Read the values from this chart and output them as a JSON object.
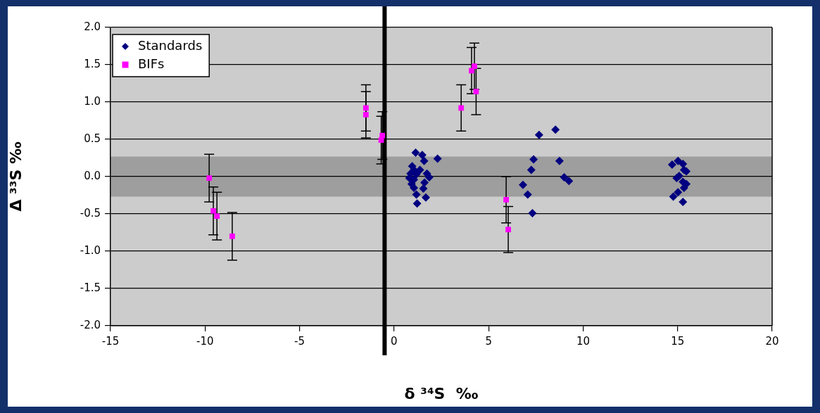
{
  "chart_data": {
    "type": "scatter",
    "xlabel": "δ ³⁴S  ‰",
    "ylabel": "Δ ³³S ‰",
    "xlim": [
      -15,
      20
    ],
    "xticks": [
      -15,
      -10,
      -5,
      0,
      5,
      10,
      15,
      20
    ],
    "ylim": [
      -2,
      2
    ],
    "yticks": [
      {
        "value": -2,
        "label": "-2.0"
      },
      {
        "value": -1.5,
        "label": "-1.5"
      },
      {
        "value": -1,
        "label": "-1.0"
      },
      {
        "value": -0.5,
        "label": "-0.5"
      },
      {
        "value": 0,
        "label": "0.0"
      },
      {
        "value": 0.5,
        "label": "0.5"
      },
      {
        "value": 1,
        "label": "1.0"
      },
      {
        "value": 1.5,
        "label": "1.5"
      },
      {
        "value": 2,
        "label": "2.0"
      }
    ],
    "grid": "y",
    "legend": "top left",
    "ref_lines": [
      {
        "axis": "x",
        "value": -0.5,
        "color": "#000000"
      }
    ],
    "bands": [
      {
        "axis": "y",
        "from": -0.27,
        "to": 0.27,
        "color": "#9e9e9e"
      }
    ],
    "series": [
      {
        "name": "Standards",
        "color": "#000080",
        "marker": "diamond",
        "x": [
          1.14,
          1.49,
          1.59,
          2.3,
          0.96,
          1.05,
          1.37,
          0.87,
          1.18,
          1.74,
          1.86,
          0.81,
          1.05,
          0.93,
          1.61,
          1.05,
          1.55,
          1.18,
          1.68,
          1.22,
          7.38,
          7.26,
          6.82,
          7.07,
          7.32,
          7.67,
          8.54,
          8.75,
          9.0,
          9.25,
          15.02,
          14.71,
          15.28,
          15.34,
          15.46,
          14.95,
          15.28,
          15.46,
          15.34,
          15.02,
          14.77,
          15.28,
          15.08
        ],
        "values": [
          0.32,
          0.29,
          0.21,
          0.24,
          0.14,
          0.09,
          0.09,
          0.04,
          0.03,
          0.04,
          -0.01,
          -0.02,
          -0.04,
          -0.1,
          -0.08,
          -0.15,
          -0.16,
          -0.24,
          -0.28,
          -0.36,
          0.23,
          0.09,
          -0.11,
          -0.24,
          -0.49,
          0.56,
          0.63,
          0.21,
          -0.01,
          -0.06,
          0.21,
          0.16,
          0.17,
          0.09,
          0.07,
          -0.02,
          -0.07,
          -0.1,
          -0.15,
          -0.21,
          -0.27,
          -0.34,
          0.01
        ]
      },
      {
        "name": "BIFs",
        "color": "#ff00ff",
        "marker": "square",
        "x": [
          -9.78,
          -9.56,
          -9.37,
          -8.56,
          -1.49,
          -1.49,
          -0.68,
          -0.62,
          3.55,
          4.34,
          4.1,
          4.25,
          5.93,
          6.04
        ],
        "values": [
          -0.02,
          -0.46,
          -0.53,
          -0.8,
          0.92,
          0.83,
          0.49,
          0.55,
          0.92,
          1.14,
          1.42,
          1.48,
          -0.31,
          -0.71
        ],
        "errors": [
          0.32,
          0.32,
          0.32,
          0.32,
          0.31,
          0.31,
          0.32,
          0.32,
          0.31,
          0.31,
          0.31,
          0.31,
          0.31,
          0.31
        ]
      }
    ]
  }
}
